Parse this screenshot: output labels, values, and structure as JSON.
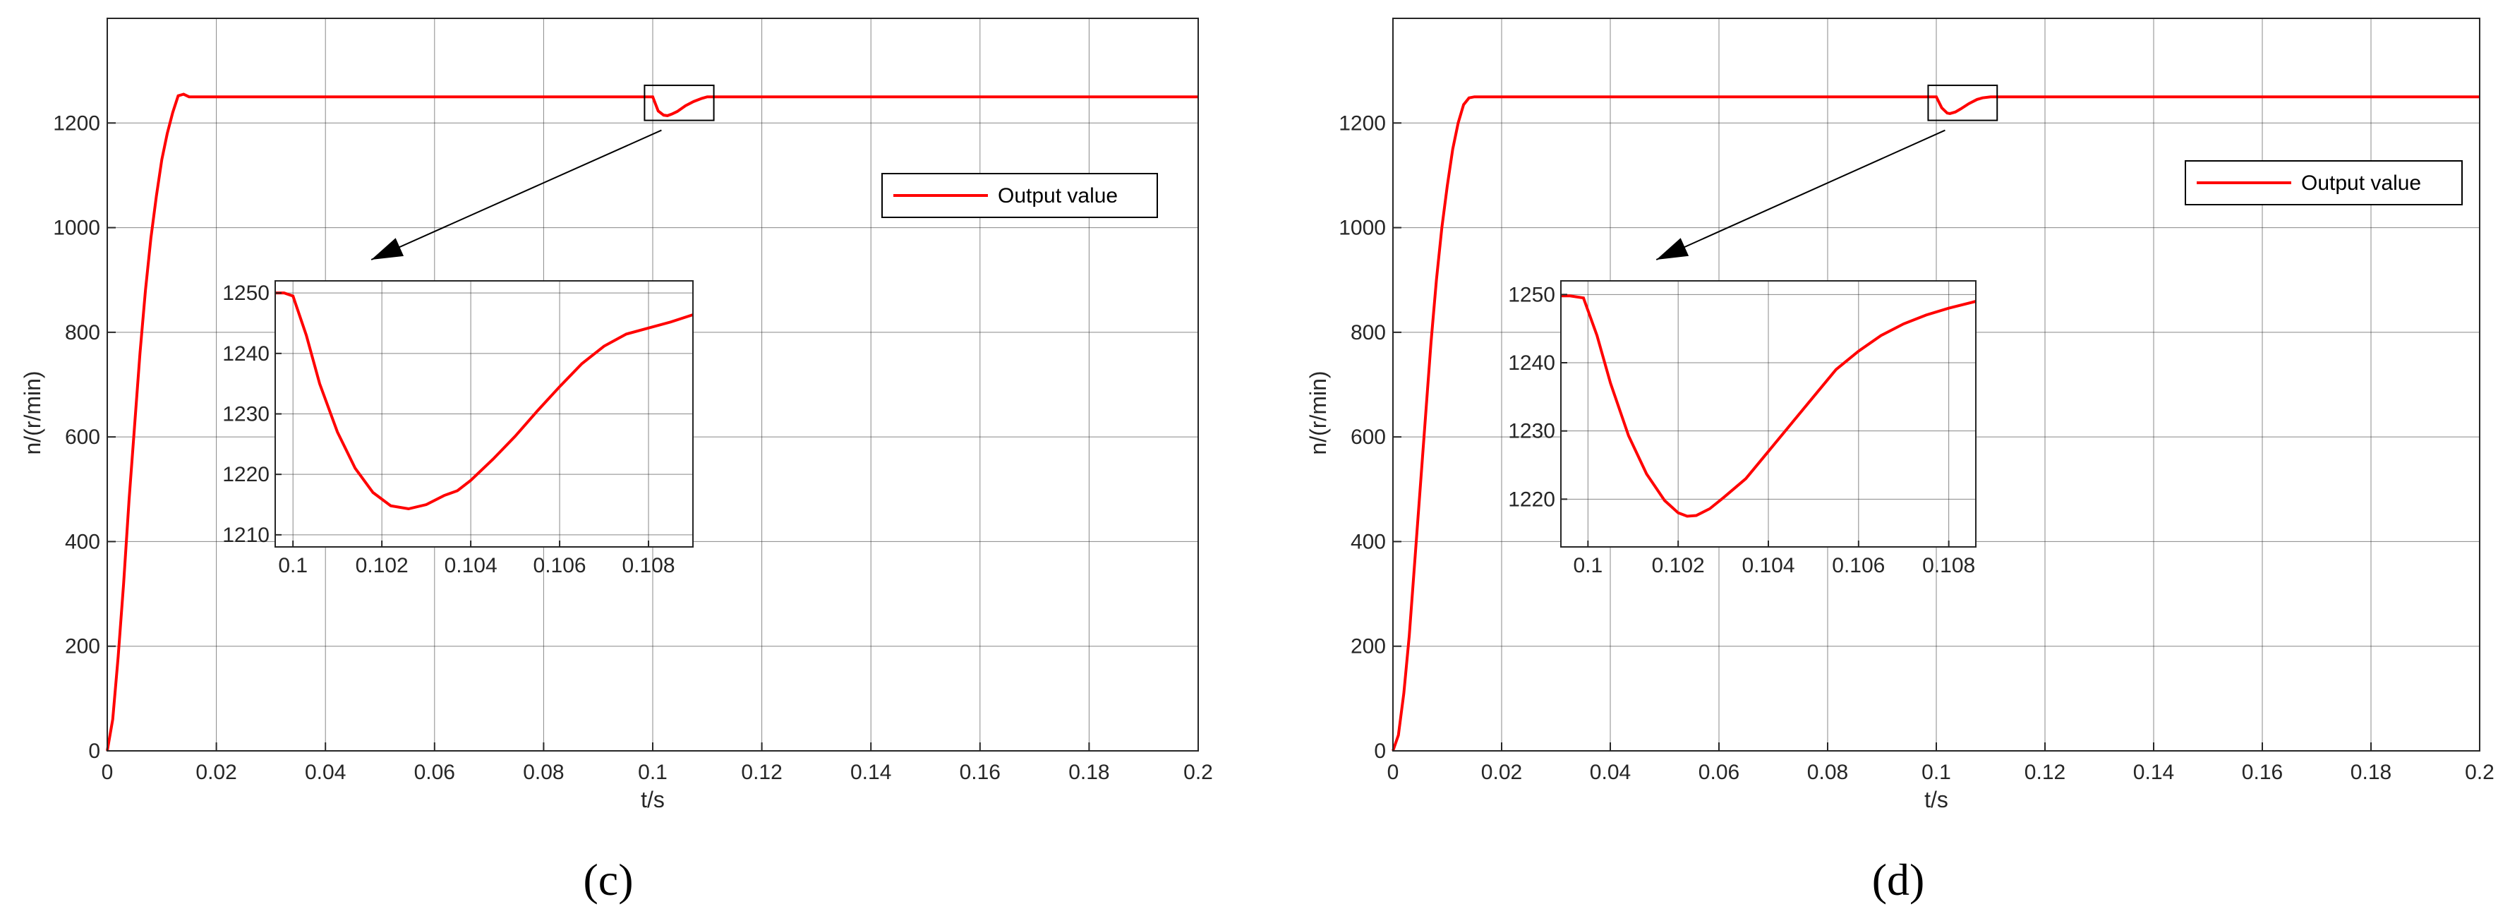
{
  "colors": {
    "series": "#ff0000",
    "grid": "#262626",
    "axis": "#262626",
    "background": "#ffffff"
  },
  "chart_data": [
    {
      "type": "line",
      "caption": "(c)",
      "xlabel": "t/s",
      "ylabel": "n/(r/min)",
      "xlim": [
        0,
        0.2
      ],
      "ylim": [
        0,
        1400
      ],
      "xticks": [
        0,
        0.02,
        0.04,
        0.06,
        0.08,
        0.1,
        0.12,
        0.14,
        0.16,
        0.18,
        0.2
      ],
      "xtick_labels": [
        "0",
        "0.02",
        "0.04",
        "0.06",
        "0.08",
        "0.1",
        "0.12",
        "0.14",
        "0.16",
        "0.18",
        "0.2"
      ],
      "yticks": [
        0,
        200,
        400,
        600,
        800,
        1000,
        1200
      ],
      "ytick_labels": [
        "0",
        "200",
        "400",
        "600",
        "800",
        "1000",
        "1200"
      ],
      "grid": true,
      "legend": {
        "position": "right",
        "entries": [
          "Output value"
        ]
      },
      "series": [
        {
          "name": "Output value",
          "x": [
            0,
            0.001,
            0.002,
            0.003,
            0.004,
            0.005,
            0.006,
            0.007,
            0.008,
            0.009,
            0.01,
            0.011,
            0.012,
            0.013,
            0.014,
            0.015,
            0.02,
            0.04,
            0.06,
            0.08,
            0.099,
            0.1,
            0.101,
            0.102,
            0.1027,
            0.1035,
            0.1045,
            0.106,
            0.1075,
            0.109,
            0.11,
            0.12,
            0.14,
            0.16,
            0.18,
            0.2
          ],
          "y": [
            0,
            60,
            180,
            320,
            480,
            620,
            760,
            880,
            980,
            1060,
            1130,
            1180,
            1220,
            1252,
            1255,
            1250,
            1250,
            1250,
            1250,
            1250,
            1250,
            1250,
            1223,
            1215,
            1214,
            1217,
            1222,
            1233,
            1241,
            1247,
            1250,
            1250,
            1250,
            1250,
            1250,
            1250
          ]
        }
      ],
      "annotation": "zoom box around t = 0.1 s with arrow to inset",
      "inset": {
        "xlim": [
          0.0996,
          0.109
        ],
        "ylim": [
          1208,
          1252
        ],
        "xticks": [
          0.1,
          0.102,
          0.104,
          0.106,
          0.108
        ],
        "xtick_labels": [
          "0.1",
          "0.102",
          "0.104",
          "0.106",
          "0.108"
        ],
        "yticks": [
          1210,
          1220,
          1230,
          1240,
          1250
        ],
        "ytick_labels": [
          "1210",
          "1220",
          "1230",
          "1240",
          "1250"
        ],
        "x": [
          0.0996,
          0.0998,
          0.1,
          0.1003,
          0.1006,
          0.101,
          0.1014,
          0.1018,
          0.1022,
          0.1026,
          0.103,
          0.1034,
          0.1037,
          0.104,
          0.1045,
          0.105,
          0.1055,
          0.106,
          0.1065,
          0.107,
          0.1075,
          0.108,
          0.1085,
          0.109
        ],
        "y": [
          1250,
          1250,
          1249.5,
          1243,
          1235,
          1227,
          1221,
          1217,
          1214.8,
          1214.3,
          1215,
          1216.5,
          1217.3,
          1219,
          1222.5,
          1226.3,
          1230.5,
          1234.5,
          1238.3,
          1241.2,
          1243.2,
          1244.2,
          1245.2,
          1246.4
        ]
      }
    },
    {
      "type": "line",
      "caption": "(d)",
      "xlabel": "t/s",
      "ylabel": "n/(r/min)",
      "xlim": [
        0,
        0.2
      ],
      "ylim": [
        0,
        1400
      ],
      "xticks": [
        0,
        0.02,
        0.04,
        0.06,
        0.08,
        0.1,
        0.12,
        0.14,
        0.16,
        0.18,
        0.2
      ],
      "xtick_labels": [
        "0",
        "0.02",
        "0.04",
        "0.06",
        "0.08",
        "0.1",
        "0.12",
        "0.14",
        "0.16",
        "0.18",
        "0.2"
      ],
      "yticks": [
        0,
        200,
        400,
        600,
        800,
        1000,
        1200
      ],
      "ytick_labels": [
        "0",
        "200",
        "400",
        "600",
        "800",
        "1000",
        "1200"
      ],
      "grid": true,
      "legend": {
        "position": "right",
        "entries": [
          "Output value"
        ]
      },
      "series": [
        {
          "name": "Output value",
          "x": [
            0,
            0.001,
            0.002,
            0.003,
            0.004,
            0.005,
            0.006,
            0.007,
            0.008,
            0.009,
            0.01,
            0.011,
            0.012,
            0.013,
            0.014,
            0.015,
            0.02,
            0.04,
            0.06,
            0.08,
            0.099,
            0.1,
            0.101,
            0.102,
            0.1025,
            0.1035,
            0.1045,
            0.106,
            0.1075,
            0.1085,
            0.11,
            0.12,
            0.14,
            0.16,
            0.18,
            0.2
          ],
          "y": [
            0,
            30,
            110,
            220,
            360,
            500,
            640,
            780,
            900,
            1000,
            1080,
            1150,
            1200,
            1235,
            1248,
            1250,
            1250,
            1250,
            1250,
            1250,
            1250,
            1250,
            1229,
            1219,
            1218,
            1221,
            1227,
            1237,
            1245,
            1248,
            1250,
            1250,
            1250,
            1250,
            1250,
            1250
          ]
        }
      ],
      "annotation": "zoom box around t = 0.1 s with arrow to inset",
      "inset": {
        "xlim": [
          0.0994,
          0.1086
        ],
        "ylim": [
          1213,
          1252
        ],
        "xticks": [
          0.1,
          0.102,
          0.104,
          0.106,
          0.108
        ],
        "xtick_labels": [
          "0.1",
          "0.102",
          "0.104",
          "0.106",
          "0.108"
        ],
        "yticks": [
          1220,
          1230,
          1240,
          1250
        ],
        "ytick_labels": [
          "1220",
          "1230",
          "1240",
          "1250"
        ],
        "x": [
          0.0994,
          0.0996,
          0.0999,
          0.1002,
          0.1005,
          0.1009,
          0.1013,
          0.1017,
          0.102,
          0.1022,
          0.1024,
          0.1027,
          0.103,
          0.1035,
          0.104,
          0.1045,
          0.105,
          0.1055,
          0.106,
          0.1065,
          0.107,
          0.1075,
          0.108,
          0.1086
        ],
        "y": [
          1249.8,
          1249.8,
          1249.5,
          1244,
          1237,
          1229.3,
          1223.7,
          1219.8,
          1218,
          1217.5,
          1217.6,
          1218.6,
          1220.2,
          1223,
          1227,
          1231,
          1235,
          1239,
          1241.7,
          1244,
          1245.7,
          1247,
          1248,
          1249
        ]
      }
    }
  ]
}
